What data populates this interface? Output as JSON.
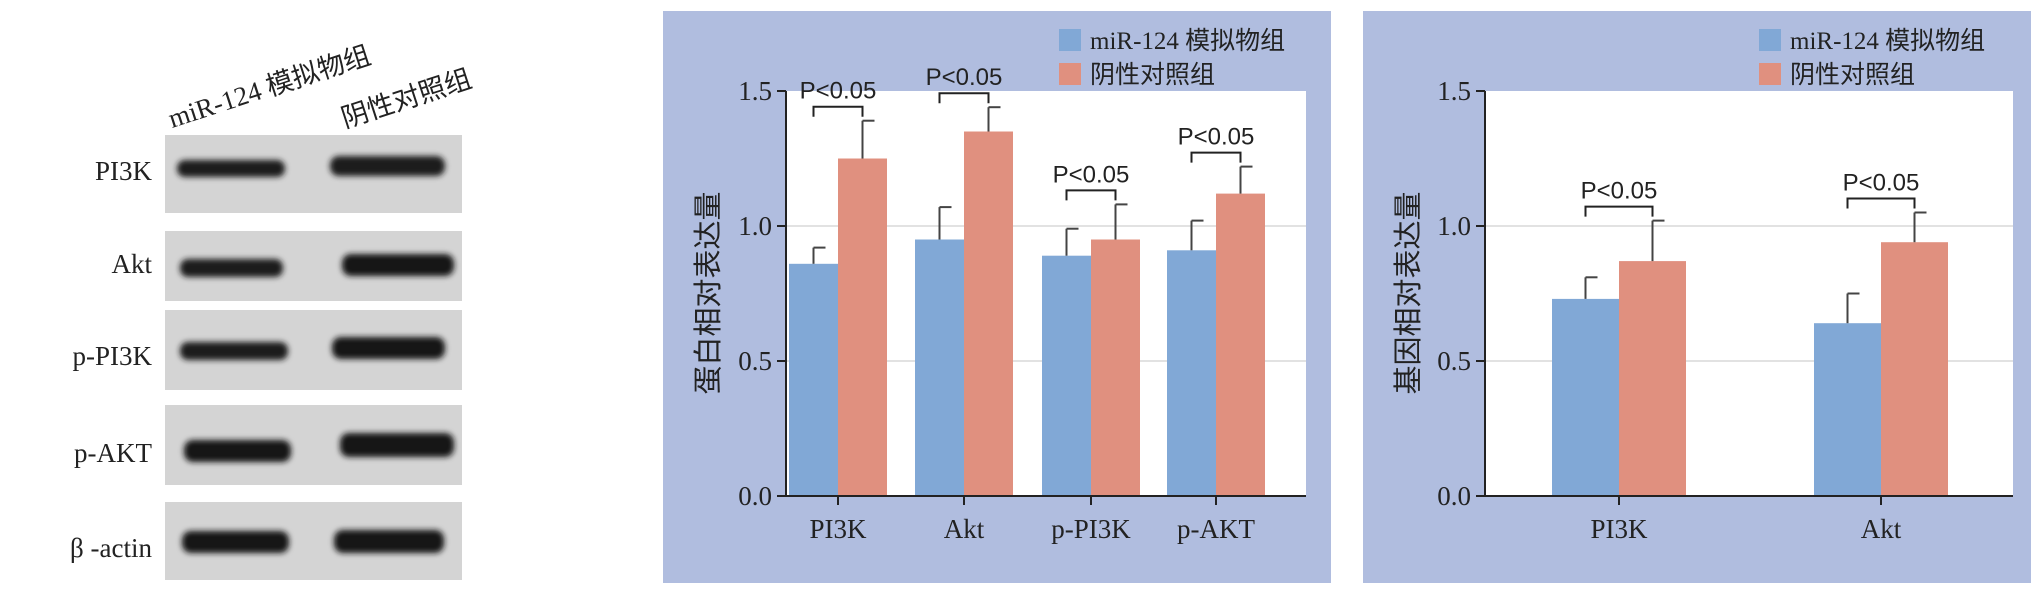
{
  "blot": {
    "column_labels": [
      "miR-124 模拟物组",
      "阴性对照组"
    ],
    "rows": [
      "PI3K",
      "Akt",
      "p-PI3K",
      "p-AKT",
      "β -actin"
    ]
  },
  "colors": {
    "panel_bg": "#b0bddf",
    "series1": "#81a8d6",
    "series2": "#e0907f",
    "grid": "#d8d8d8"
  },
  "chart_data": [
    {
      "type": "bar",
      "ylabel": "蛋白相对表达量",
      "ylim": [
        0,
        1.5
      ],
      "yticks": [
        "0.0",
        "0.5",
        "1.0",
        "1.5"
      ],
      "categories": [
        "PI3K",
        "Akt",
        "p-PI3K",
        "p-AKT"
      ],
      "legend_position": "top-right",
      "series": [
        {
          "name": "miR-124 模拟物组",
          "values": [
            0.86,
            0.95,
            0.89,
            0.91
          ],
          "errors": [
            0.06,
            0.12,
            0.1,
            0.11
          ]
        },
        {
          "name": "阴性对照组",
          "values": [
            1.25,
            1.35,
            0.95,
            1.12
          ],
          "errors": [
            0.14,
            0.09,
            0.13,
            0.1
          ]
        }
      ],
      "annotations": [
        {
          "category": "PI3K",
          "text": "P<0.05"
        },
        {
          "category": "Akt",
          "text": "P<0.05"
        },
        {
          "category": "p-PI3K",
          "text": "P<0.05"
        },
        {
          "category": "p-AKT",
          "text": "P<0.05"
        }
      ]
    },
    {
      "type": "bar",
      "ylabel": "基因相对表达量",
      "ylim": [
        0,
        1.5
      ],
      "yticks": [
        "0.0",
        "0.5",
        "1.0",
        "1.5"
      ],
      "categories": [
        "PI3K",
        "Akt"
      ],
      "legend_position": "top-right",
      "series": [
        {
          "name": "miR-124 模拟物组",
          "values": [
            0.73,
            0.64
          ],
          "errors": [
            0.08,
            0.11
          ]
        },
        {
          "name": "阴性对照组",
          "values": [
            0.87,
            0.94
          ],
          "errors": [
            0.15,
            0.11
          ]
        }
      ],
      "annotations": [
        {
          "category": "PI3K",
          "text": "P<0.05"
        },
        {
          "category": "Akt",
          "text": "P<0.05"
        }
      ]
    }
  ]
}
